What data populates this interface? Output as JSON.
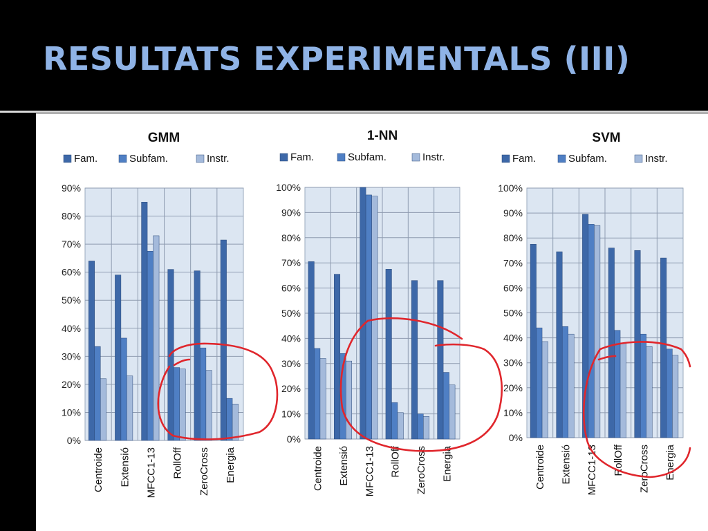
{
  "slide": {
    "title": "RESULTATS EXPERIMENTALS (III)"
  },
  "colors": {
    "fam": "#3d68a8",
    "subfam": "#4f7fc4",
    "instr": "#a4badb",
    "plot_bg": "#dce6f2",
    "annotation": "#e0262c"
  },
  "chart_data": [
    {
      "type": "bar",
      "title": "GMM",
      "categories": [
        "Centroide",
        "Extensió",
        "MFCC1-13",
        "RollOff",
        "ZeroCross",
        "Energia"
      ],
      "series": [
        {
          "name": "Fam.",
          "values": [
            64,
            59,
            85,
            61,
            60.5,
            71.5
          ]
        },
        {
          "name": "Subfam.",
          "values": [
            33.5,
            36.5,
            67.5,
            26,
            33,
            15
          ]
        },
        {
          "name": "Instr.",
          "values": [
            22,
            23,
            73,
            25.5,
            25,
            13
          ]
        }
      ],
      "ylim": [
        0,
        90
      ],
      "yticks": [
        "0%",
        "10%",
        "20%",
        "30%",
        "40%",
        "50%",
        "60%",
        "70%",
        "80%",
        "90%"
      ],
      "legend": "top",
      "grid": true
    },
    {
      "type": "bar",
      "title": "1-NN",
      "categories": [
        "Centroide",
        "Extensió",
        "MFCC1-13",
        "RollOff",
        "ZeroCross",
        "Energia"
      ],
      "series": [
        {
          "name": "Fam.",
          "values": [
            70.5,
            65.5,
            100,
            67.5,
            63,
            63
          ]
        },
        {
          "name": "Subfam.",
          "values": [
            36,
            34,
            97,
            14.5,
            10,
            26.5
          ]
        },
        {
          "name": "Instr.",
          "values": [
            32,
            31,
            96.5,
            10.5,
            9,
            21.5
          ]
        }
      ],
      "ylim": [
        0,
        100
      ],
      "yticks": [
        "0%",
        "10%",
        "20%",
        "30%",
        "40%",
        "50%",
        "60%",
        "70%",
        "80%",
        "90%",
        "100%"
      ],
      "legend": "top",
      "grid": true
    },
    {
      "type": "bar",
      "title": "SVM",
      "categories": [
        "Centroide",
        "Extensió",
        "MFCC1-13",
        "RollOff",
        "ZeroCross",
        "Energia"
      ],
      "series": [
        {
          "name": "Fam.",
          "values": [
            77.5,
            74.5,
            89.5,
            76,
            75,
            72
          ]
        },
        {
          "name": "Subfam.",
          "values": [
            44,
            44.5,
            85.5,
            43,
            41.5,
            35.5
          ]
        },
        {
          "name": "Instr.",
          "values": [
            38.5,
            41.5,
            85,
            38,
            36.5,
            33
          ]
        }
      ],
      "ylim": [
        0,
        100
      ],
      "yticks": [
        "0%",
        "10%",
        "20%",
        "30%",
        "40%",
        "50%",
        "60%",
        "70%",
        "80%",
        "90%",
        "100%"
      ],
      "legend": "top",
      "grid": true
    }
  ]
}
